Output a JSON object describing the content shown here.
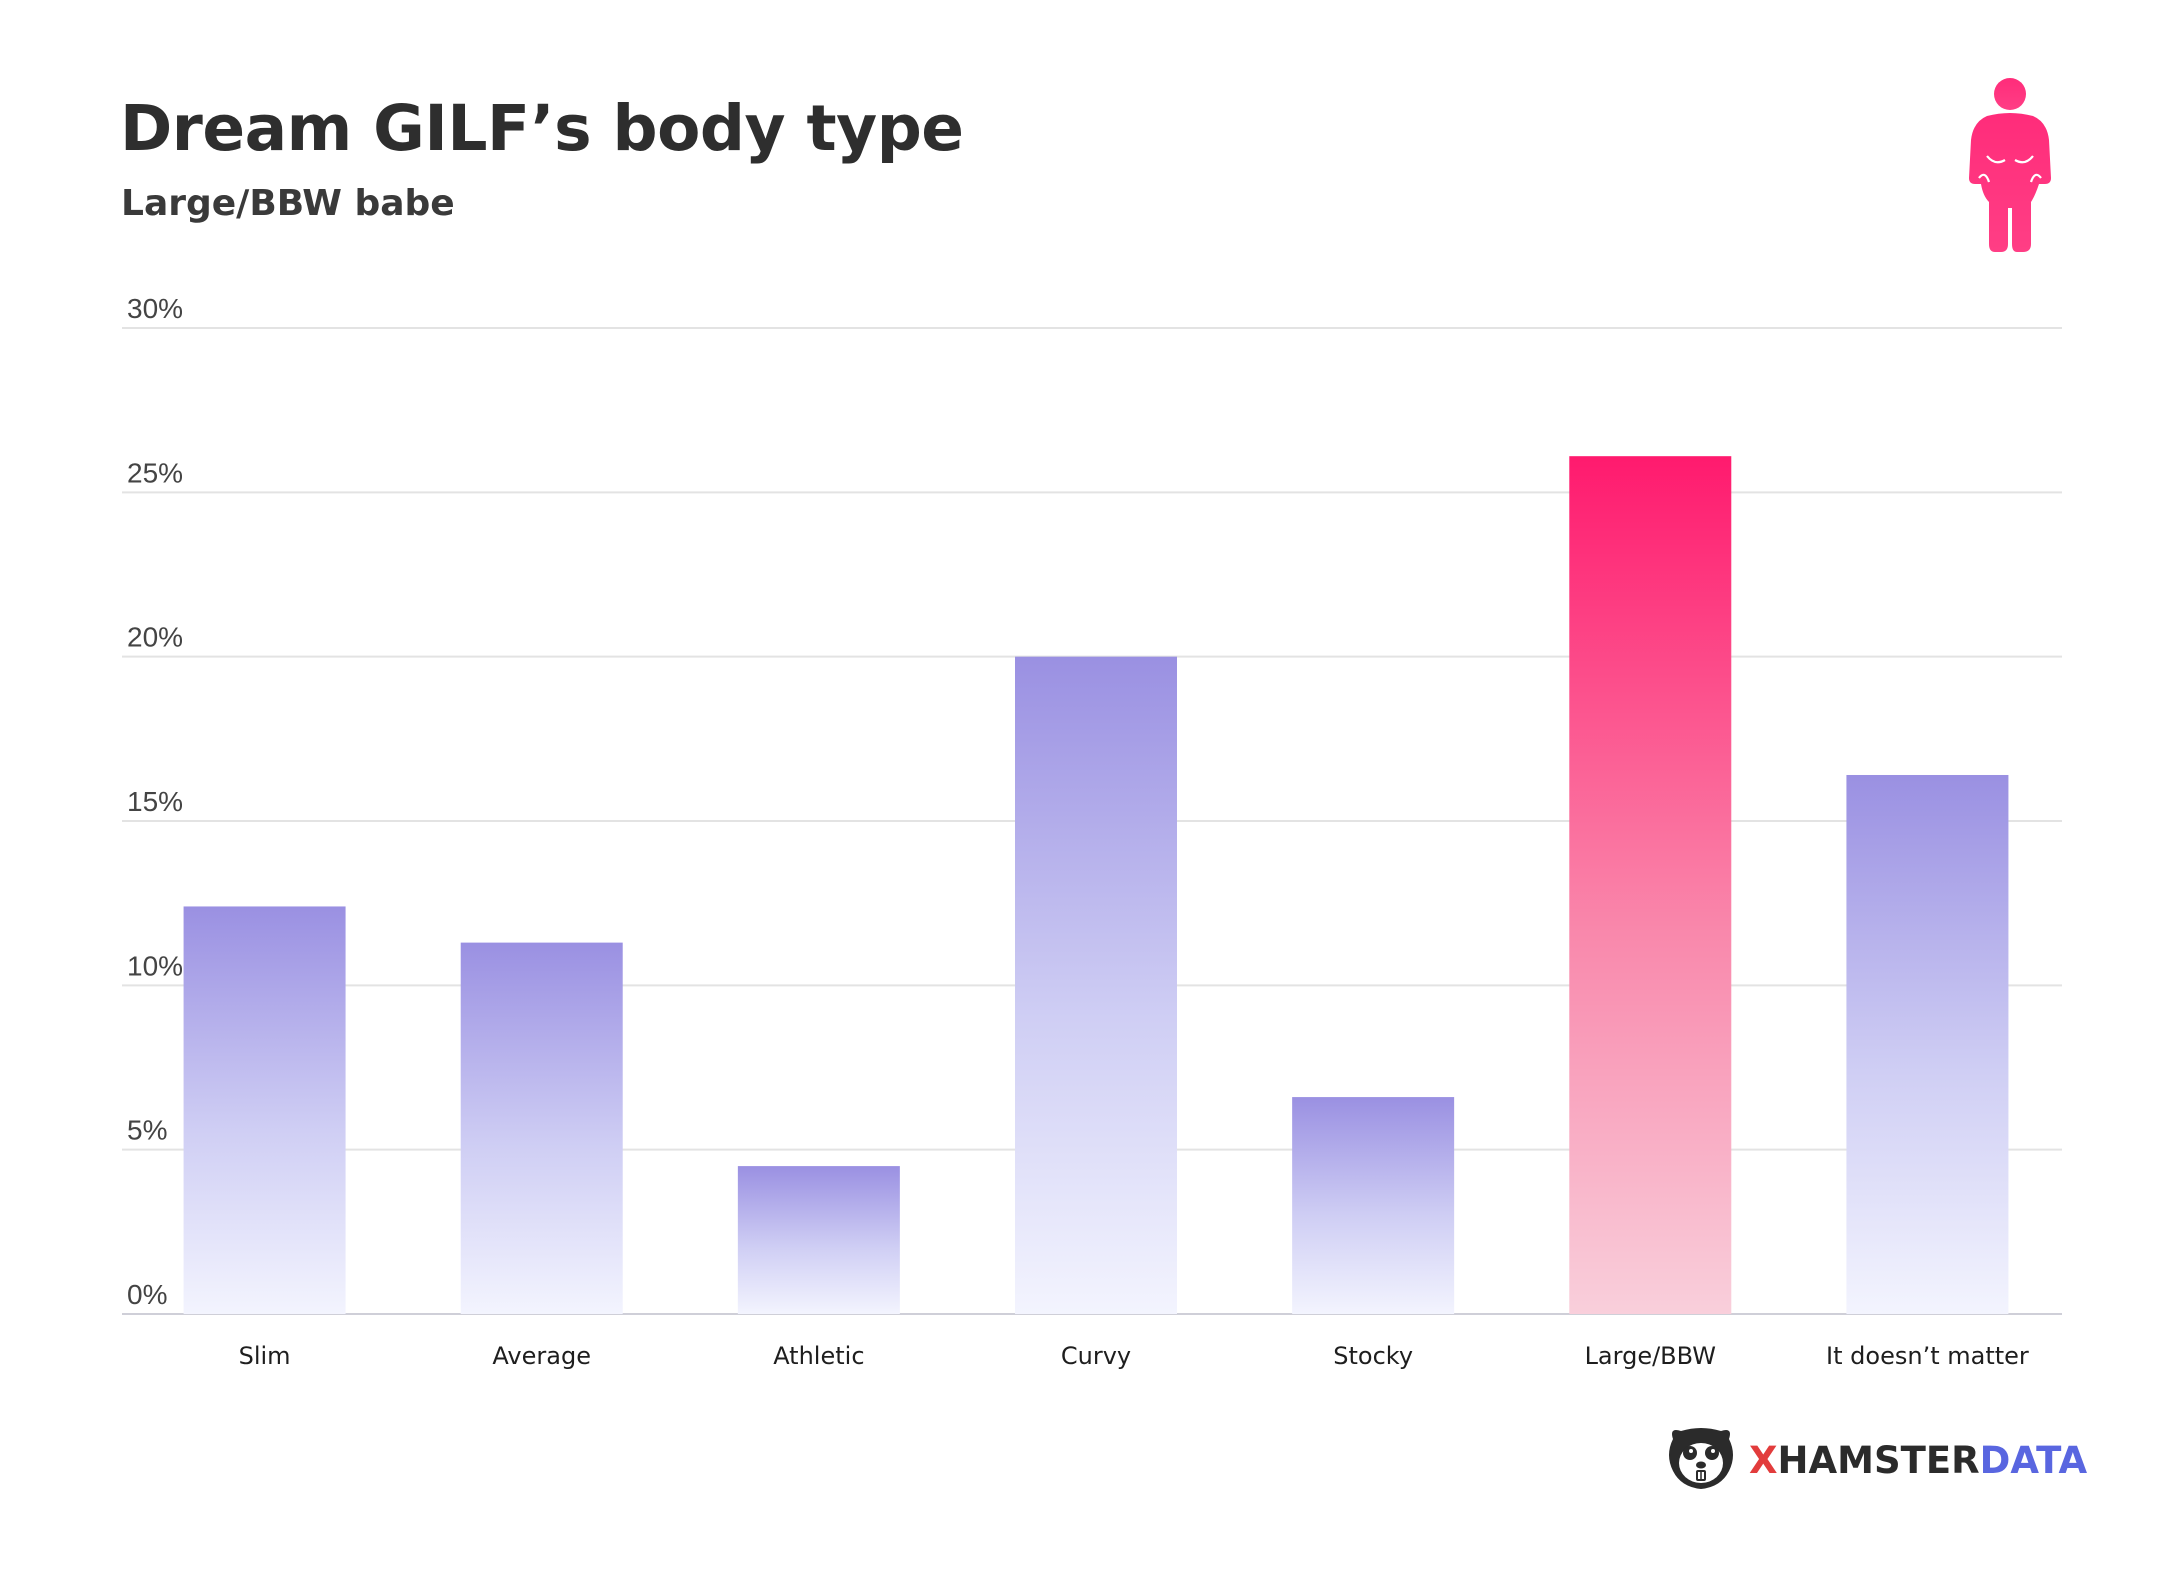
{
  "title": "Dream GILF’s body type",
  "subtitle": "Large/BBW babe",
  "icons": {
    "figure": "plus-size-woman-icon",
    "logo": "hamster-logo-icon"
  },
  "colors": {
    "accent": "#ff1a6e",
    "bar_top": "#9a90e2",
    "bar_bottom": "#f2f3fd",
    "highlight_top": "#ff1a6e",
    "highlight_bottom": "#f9cbd9",
    "grid": "#e3e3e3"
  },
  "logo": {
    "x": "X",
    "hamster": "HAMSTER",
    "data": "DATA"
  },
  "chart_data": {
    "type": "bar",
    "title": "Dream GILF’s body type",
    "subtitle": "Large/BBW babe",
    "categories": [
      "Slim",
      "Average",
      "Athletic",
      "Curvy",
      "Stocky",
      "Large/BBW",
      "It doesn’t matter"
    ],
    "values": [
      12.4,
      11.3,
      4.5,
      20.0,
      6.6,
      26.1,
      16.4
    ],
    "highlight": "Large/BBW",
    "ylim": [
      0,
      30
    ],
    "yticks": [
      0,
      5,
      10,
      15,
      20,
      25,
      30
    ],
    "ytick_labels": [
      "0%",
      "5%",
      "10%",
      "15%",
      "20%",
      "25%",
      "30%"
    ],
    "grid": true,
    "legend": "none"
  }
}
